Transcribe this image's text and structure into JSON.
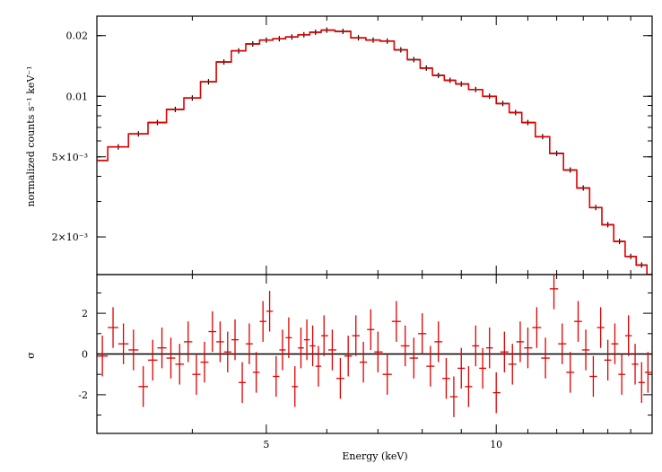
{
  "chart_data": [
    {
      "type": "line",
      "panel": "spectrum",
      "ylabel": "normalized counts s⁻¹ keV⁻¹",
      "yscale": "log",
      "xscale": "log",
      "xlim": [
        3.0,
        16.0
      ],
      "ylim": [
        0.0013,
        0.025
      ],
      "yticks": [
        {
          "value": 0.02,
          "label": "0.02"
        },
        {
          "value": 0.01,
          "label": "0.01"
        },
        {
          "value": 0.005,
          "label": "5×10⁻³"
        },
        {
          "value": 0.002,
          "label": "2×10⁻³"
        }
      ],
      "series": [
        {
          "role": "data",
          "color": "#000000",
          "x": [
            3.0,
            3.2,
            3.4,
            3.6,
            3.8,
            4.0,
            4.2,
            4.4,
            4.6,
            4.8,
            5.0,
            5.2,
            5.4,
            5.6,
            5.8,
            6.0,
            6.3,
            6.6,
            6.9,
            7.2,
            7.5,
            7.8,
            8.1,
            8.4,
            8.7,
            9.0,
            9.4,
            9.8,
            10.2,
            10.6,
            11.0,
            11.5,
            12.0,
            12.5,
            13.0,
            13.5,
            14.0,
            14.5,
            15.0,
            15.5,
            16.0
          ],
          "y": [
            0.0048,
            0.0056,
            0.0065,
            0.0074,
            0.0086,
            0.0098,
            0.0118,
            0.0148,
            0.0168,
            0.0182,
            0.019,
            0.0193,
            0.0197,
            0.0202,
            0.0208,
            0.0213,
            0.021,
            0.0195,
            0.019,
            0.0188,
            0.017,
            0.0152,
            0.0138,
            0.0127,
            0.012,
            0.0115,
            0.0108,
            0.01,
            0.0092,
            0.0083,
            0.0074,
            0.0063,
            0.0052,
            0.0043,
            0.0035,
            0.0028,
            0.0023,
            0.0019,
            0.0016,
            0.00145,
            0.0013
          ]
        },
        {
          "role": "model",
          "color": "#e00000",
          "x": [
            3.0,
            3.2,
            3.4,
            3.6,
            3.8,
            4.0,
            4.2,
            4.4,
            4.6,
            4.8,
            5.0,
            5.2,
            5.4,
            5.6,
            5.8,
            6.0,
            6.3,
            6.6,
            6.9,
            7.2,
            7.5,
            7.8,
            8.1,
            8.4,
            8.7,
            9.0,
            9.4,
            9.8,
            10.2,
            10.6,
            11.0,
            11.5,
            12.0,
            12.5,
            13.0,
            13.5,
            14.0,
            14.5,
            15.0,
            15.5,
            16.0
          ],
          "y": [
            0.0048,
            0.0056,
            0.0065,
            0.0074,
            0.0086,
            0.0098,
            0.0118,
            0.0148,
            0.0168,
            0.0182,
            0.019,
            0.0193,
            0.0197,
            0.0202,
            0.0208,
            0.0213,
            0.021,
            0.0195,
            0.019,
            0.0188,
            0.017,
            0.0152,
            0.0138,
            0.0127,
            0.012,
            0.0115,
            0.0108,
            0.01,
            0.0092,
            0.0083,
            0.0074,
            0.0063,
            0.0052,
            0.0043,
            0.0035,
            0.0028,
            0.0023,
            0.0019,
            0.0016,
            0.00145,
            0.0013
          ]
        }
      ]
    },
    {
      "type": "scatter",
      "panel": "residuals",
      "ylabel": "σ",
      "xlabel": "Energy (keV)",
      "xscale": "log",
      "xlim": [
        3.0,
        16.0
      ],
      "ylim": [
        -3.9,
        3.9
      ],
      "xticks": [
        {
          "value": 5,
          "label": "5"
        },
        {
          "value": 10,
          "label": "10"
        }
      ],
      "yticks": [
        {
          "value": 2,
          "label": "2"
        },
        {
          "value": 0,
          "label": "0"
        },
        {
          "value": -2,
          "label": "-2"
        }
      ],
      "baseline": 0,
      "series": [
        {
          "role": "residuals",
          "color": "#e00000",
          "x": [
            3.05,
            3.15,
            3.25,
            3.35,
            3.45,
            3.55,
            3.65,
            3.75,
            3.85,
            3.95,
            4.05,
            4.15,
            4.25,
            4.35,
            4.45,
            4.55,
            4.65,
            4.75,
            4.85,
            4.95,
            5.05,
            5.15,
            5.25,
            5.35,
            5.45,
            5.55,
            5.65,
            5.75,
            5.85,
            5.95,
            6.1,
            6.25,
            6.4,
            6.55,
            6.7,
            6.85,
            7.0,
            7.2,
            7.4,
            7.6,
            7.8,
            8.0,
            8.2,
            8.4,
            8.6,
            8.8,
            9.0,
            9.2,
            9.4,
            9.6,
            9.8,
            10.0,
            10.25,
            10.5,
            10.75,
            11.0,
            11.3,
            11.6,
            11.9,
            12.2,
            12.5,
            12.8,
            13.1,
            13.4,
            13.7,
            14.0,
            14.3,
            14.6,
            14.9,
            15.2,
            15.5,
            15.8
          ],
          "y": [
            -0.1,
            1.3,
            0.5,
            0.2,
            -1.6,
            -0.3,
            0.3,
            -0.2,
            -0.5,
            0.6,
            -1.0,
            -0.4,
            1.1,
            0.6,
            0.1,
            0.7,
            -1.4,
            0.5,
            -0.9,
            1.6,
            2.1,
            -1.1,
            0.2,
            0.8,
            -1.6,
            0.3,
            0.7,
            0.4,
            -0.6,
            0.9,
            0.2,
            -1.2,
            -0.1,
            0.9,
            -0.4,
            1.2,
            0.1,
            -1.0,
            1.6,
            0.4,
            -0.2,
            1.0,
            -0.6,
            0.6,
            -1.2,
            -2.1,
            -0.7,
            -1.6,
            0.4,
            -0.7,
            0.3,
            -1.9,
            0.1,
            -0.5,
            0.6,
            0.3,
            1.3,
            -0.2,
            3.2,
            0.5,
            -0.9,
            1.6,
            0.2,
            -1.1,
            1.3,
            -0.3,
            0.5,
            -1.0,
            0.9,
            -0.5,
            -1.4,
            -0.9
          ]
        }
      ]
    }
  ]
}
